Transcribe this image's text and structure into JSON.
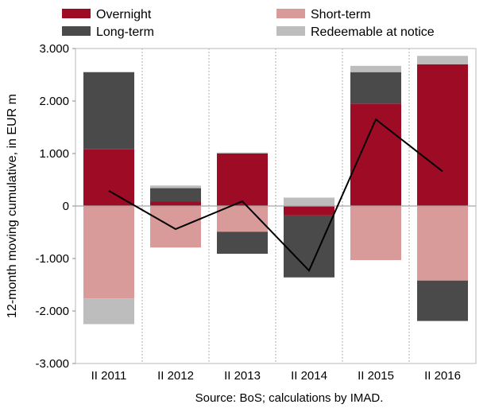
{
  "chart_data": {
    "type": "bar",
    "stacked": true,
    "categories": [
      "II 2011",
      "II 2012",
      "II 2013",
      "II 2014",
      "II 2015",
      "II 2016"
    ],
    "series": [
      {
        "name": "Overnight",
        "kind": "bar",
        "color": "#9e0b25",
        "values": [
          1080,
          90,
          1000,
          -180,
          1950,
          2700
        ]
      },
      {
        "name": "Short-term",
        "kind": "bar",
        "color": "#d99a9a",
        "values": [
          -1760,
          -790,
          -490,
          0,
          -1030,
          -1420
        ]
      },
      {
        "name": "Long-term",
        "kind": "bar",
        "color": "#4a4a4a",
        "values": [
          1470,
          250,
          -420,
          -1180,
          600,
          -770
        ]
      },
      {
        "name": "Redeemable at notice",
        "kind": "bar",
        "color": "#bdbdbd",
        "values": [
          -490,
          50,
          20,
          160,
          120,
          160
        ]
      },
      {
        "name": "",
        "kind": "line",
        "color": "#000000",
        "values": [
          290,
          -440,
          90,
          -1230,
          1650,
          660
        ]
      }
    ],
    "ylabel": "12-month moving cumulative, in EUR m",
    "ylim": [
      -3000,
      3000
    ],
    "yticks": [
      3000,
      2000,
      1000,
      0,
      -1000,
      -2000,
      -3000
    ],
    "ytick_labels": [
      "3.000",
      "2.000",
      "1.000",
      "0",
      "-1.000",
      "-2.000",
      "-3.000"
    ],
    "grid": "vertical dotted",
    "legend": "top, two columns",
    "source": "Source: BoS; calculations by IMAD."
  }
}
